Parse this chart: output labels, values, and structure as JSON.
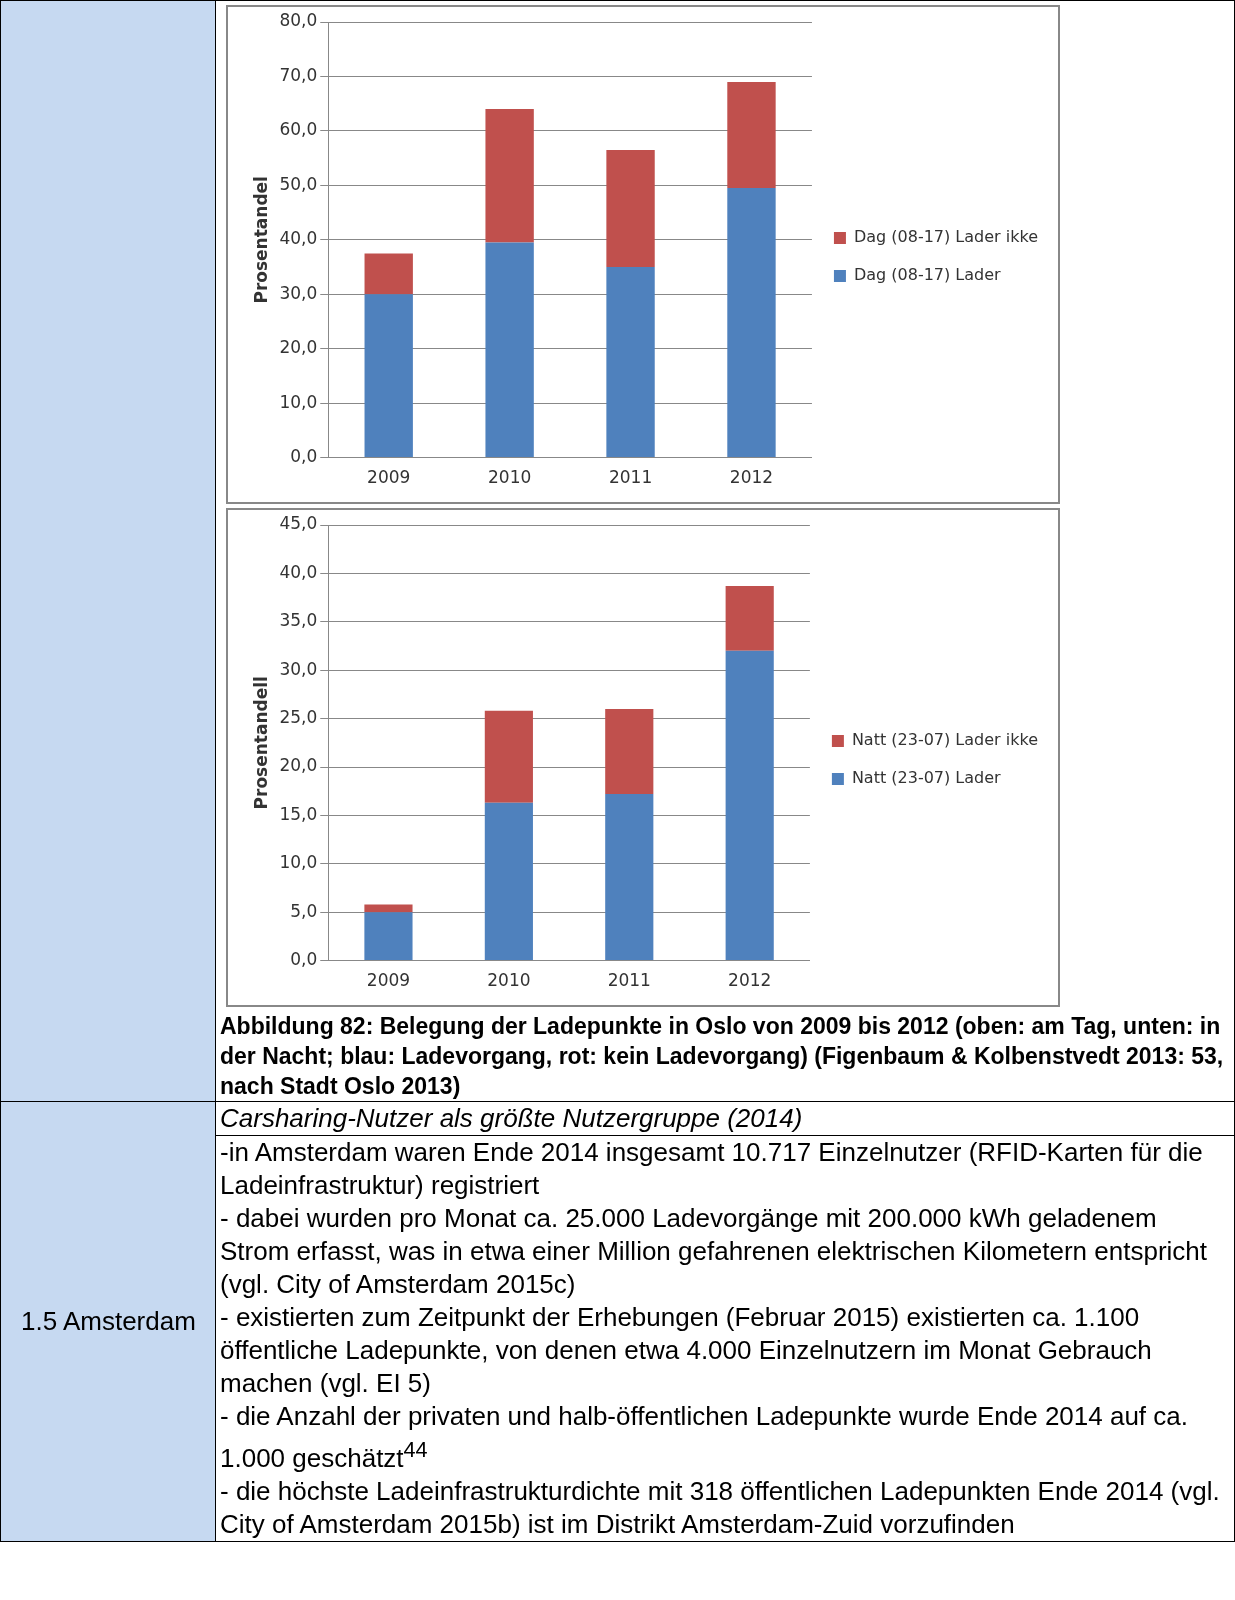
{
  "chart_data": [
    {
      "type": "bar",
      "stacked": true,
      "ylabel": "Prosentandel",
      "categories": [
        "2009",
        "2010",
        "2011",
        "2012"
      ],
      "series": [
        {
          "name": "Dag (08-17) Lader",
          "color": "#4f81bd",
          "values": [
            30,
            39.5,
            35,
            49.5
          ]
        },
        {
          "name": "Dag (08-17) Lader ikke",
          "color": "#c0504d",
          "values": [
            7.5,
            24.5,
            21.5,
            19.5
          ]
        }
      ],
      "ylim": [
        0,
        80
      ],
      "yticks": [
        {
          "value": 0,
          "label": "0,0"
        },
        {
          "value": 10,
          "label": "10,0"
        },
        {
          "value": 20,
          "label": "20,0"
        },
        {
          "value": 30,
          "label": "30,0"
        },
        {
          "value": 40,
          "label": "40,0"
        },
        {
          "value": 50,
          "label": "50,0"
        },
        {
          "value": 60,
          "label": "60,0"
        },
        {
          "value": 70,
          "label": "70,0"
        },
        {
          "value": 80,
          "label": "80,0"
        }
      ],
      "grid": "y",
      "legend": "right"
    },
    {
      "type": "bar",
      "stacked": true,
      "ylabel": "Prosentandell",
      "categories": [
        "2009",
        "2010",
        "2011",
        "2012"
      ],
      "series": [
        {
          "name": "Natt (23-07) Lader",
          "color": "#4f81bd",
          "values": [
            5,
            16.3,
            17.2,
            32
          ]
        },
        {
          "name": "Natt (23-07) Lader ikke",
          "color": "#c0504d",
          "values": [
            0.8,
            9.5,
            8.8,
            6.7
          ]
        }
      ],
      "ylim": [
        0,
        45
      ],
      "yticks": [
        {
          "value": 0,
          "label": "0,0"
        },
        {
          "value": 5,
          "label": "5,0"
        },
        {
          "value": 10,
          "label": "10,0"
        },
        {
          "value": 15,
          "label": "15,0"
        },
        {
          "value": 20,
          "label": "20,0"
        },
        {
          "value": 25,
          "label": "25,0"
        },
        {
          "value": 30,
          "label": "30,0"
        },
        {
          "value": 35,
          "label": "35,0"
        },
        {
          "value": 40,
          "label": "40,0"
        },
        {
          "value": 45,
          "label": "45,0"
        }
      ],
      "grid": "y",
      "legend": "right",
      "annotations": [
        "Abbildung 82: Belegung der Ladepunkte in Oslo von 2009 bis 2012 (oben: am Tag, unten: in der Nacht; blau: Ladevorgang, rot: kein Ladevorgang) (Figenbaum & Kolbenstvedt 2013: 53, nach Stadt Oslo 2013)",
        "1.5 Amsterdam",
        "Carsharing-Nutzer als größte Nutzergruppe (2014)",
        "-in Amsterdam waren Ende 2014 insgesamt 10.717 Einzelnutzer (RFID-Karten für die Ladeinfrastruktur) registriert",
        "- dabei wurden pro Monat ca. 25.000 Ladevorgänge mit 200.000 kWh geladenem Strom erfasst, was in etwa einer Million gefahrenen elektrischen Kilometern entspricht (vgl. City of Amsterdam 2015c)",
        "- existierten zum Zeitpunkt der Erhebungen (Februar 2015) existierten ca. 1.100 öffentliche Ladepunkte, von denen etwa 4.000 Einzelnutzern im Monat Gebrauch machen (vgl. EI 5)",
        "- die Anzahl der privaten und halb-öffentlichen Ladepunkte wurde Ende 2014 auf ca. 1.000 geschätzt$^{44}$",
        "- die höchste Ladeinfrastrukturdichte mit 318 öffentlichen Ladepunkten Ende 2014 (vgl. City of Amsterdam 2015b) ist im Distrikt Amsterdam-Zuid vorzufinden"
      ]
    }
  ]
}
